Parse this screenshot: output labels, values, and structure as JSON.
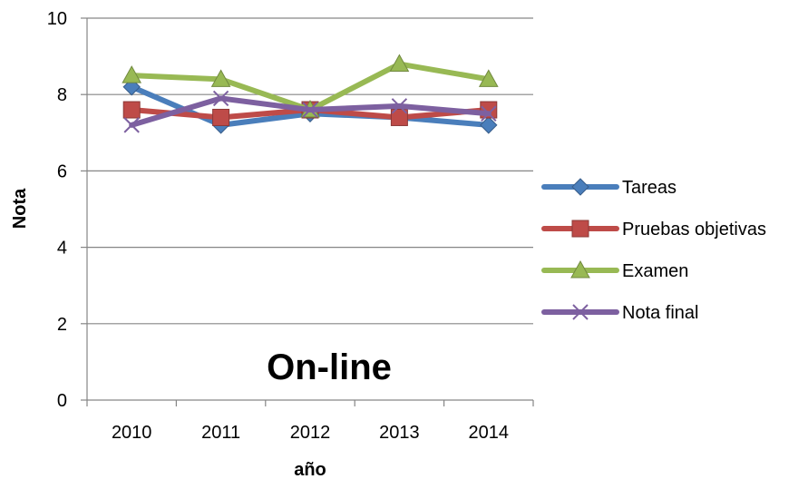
{
  "chart_data": {
    "type": "line",
    "title": "On-line",
    "xlabel": "año",
    "ylabel": "Nota",
    "categories": [
      "2010",
      "2011",
      "2012",
      "2013",
      "2014"
    ],
    "ylim": [
      0,
      10
    ],
    "yticks": [
      "0",
      "2",
      "4",
      "6",
      "8",
      "10"
    ],
    "grid": "horizontal",
    "legend_position": "right",
    "series": [
      {
        "name": "Tareas",
        "values": [
          8.2,
          7.2,
          7.5,
          7.4,
          7.2
        ],
        "color": "#4a7ebb",
        "marker": "diamond"
      },
      {
        "name": "Pruebas objetivas",
        "values": [
          7.6,
          7.4,
          7.6,
          7.4,
          7.6
        ],
        "color": "#be4b48",
        "marker": "square"
      },
      {
        "name": "Examen",
        "values": [
          8.5,
          8.4,
          7.6,
          8.8,
          8.4
        ],
        "color": "#98b954",
        "marker": "triangle"
      },
      {
        "name": "Nota final",
        "values": [
          7.2,
          7.9,
          7.6,
          7.7,
          7.5
        ],
        "color": "#7d60a0",
        "marker": "x"
      }
    ]
  }
}
